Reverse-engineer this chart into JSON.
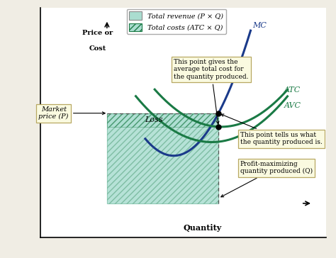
{
  "bg_color": "#f0ede4",
  "ax_bg": "#ffffff",
  "mc_color": "#1a3a8a",
  "atc_avc_color": "#1a7a45",
  "legend_fill_color": "#aaddd0",
  "hatch_edge_color": "#1a7a45",
  "ann_bg": "#fafae0",
  "ann_edge": "#b8a862",
  "dashed_color": "#555555",
  "ylabel_text": [
    "Price or",
    "Cost"
  ],
  "xlabel_text": "Quantity",
  "legend_label1": "Total revenue (P × Q)",
  "legend_label2": "Total costs (ATC × Q)",
  "loss_label": "Loss",
  "mc_label": "MC",
  "atc_label": "ATC",
  "avc_label": "AVC",
  "market_label": "Market\nprice (P)",
  "ann1": "This point gives the\naverage total cost for\nthe quantity produced.",
  "ann2": "This point tells us what\nthe quantity produced is.",
  "ann3": "Profit-maximizing\nquantity produced (Q)"
}
